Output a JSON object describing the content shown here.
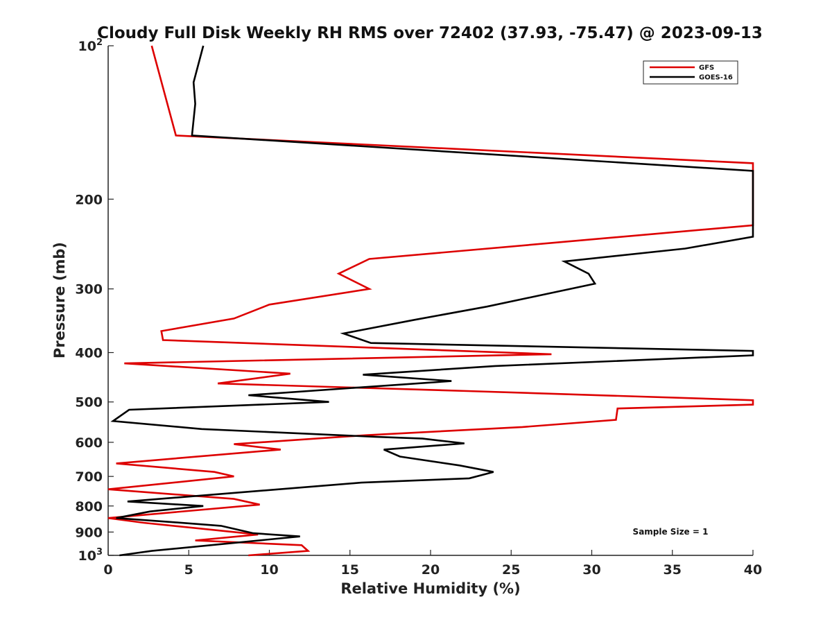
{
  "chart_data": {
    "type": "line",
    "title": "Cloudy Full Disk Weekly RH RMS over 72402 (37.93, -75.47) @ 2023-09-13",
    "xlabel": "Relative Humidity (%)",
    "ylabel": "Pressure (mb)",
    "xlim": [
      0,
      40
    ],
    "ylim": [
      100,
      1000
    ],
    "yscale": "log",
    "y_reversed": true,
    "grid": false,
    "legend_position": "top-right",
    "x_ticks": [
      "0",
      "5",
      "10",
      "15",
      "20",
      "25",
      "30",
      "35",
      "40"
    ],
    "y_ticks": [
      {
        "value": 100,
        "base": "10",
        "exp": "2"
      },
      {
        "value": 200,
        "label": "200"
      },
      {
        "value": 300,
        "label": "300"
      },
      {
        "value": 400,
        "label": "400"
      },
      {
        "value": 500,
        "label": "500"
      },
      {
        "value": 600,
        "label": "600"
      },
      {
        "value": 700,
        "label": "700"
      },
      {
        "value": 800,
        "label": "800"
      },
      {
        "value": 900,
        "label": "900"
      },
      {
        "value": 1000,
        "base": "10",
        "exp": "3"
      }
    ],
    "series": [
      {
        "name": "GFS",
        "color": "#dd0000",
        "points": [
          [
            2.7,
            100
          ],
          [
            4.2,
            150
          ],
          [
            40,
            170
          ],
          [
            40,
            225
          ],
          [
            16.2,
            262
          ],
          [
            14.3,
            280
          ],
          [
            16.2,
            300
          ],
          [
            10,
            322
          ],
          [
            7.8,
            343
          ],
          [
            3.3,
            363
          ],
          [
            3.4,
            378
          ],
          [
            27.5,
            403
          ],
          [
            1.0,
            420
          ],
          [
            11.3,
            440
          ],
          [
            6.8,
            460
          ],
          [
            22.3,
            476
          ],
          [
            40,
            496
          ],
          [
            40,
            506
          ],
          [
            31.6,
            515
          ],
          [
            31.5,
            542
          ],
          [
            25.7,
            560
          ],
          [
            16.0,
            581
          ],
          [
            7.8,
            605
          ],
          [
            10.7,
            620
          ],
          [
            0.5,
            660
          ],
          [
            6.6,
            686
          ],
          [
            7.8,
            700
          ],
          [
            0,
            742
          ],
          [
            7.8,
            775
          ],
          [
            9.4,
            795
          ],
          [
            0,
            845
          ],
          [
            2.2,
            863
          ],
          [
            9.3,
            910
          ],
          [
            5.4,
            935
          ],
          [
            12.0,
            955
          ],
          [
            12.4,
            980
          ],
          [
            8.7,
            1000
          ]
        ]
      },
      {
        "name": "GOES-16",
        "color": "#000000",
        "points": [
          [
            5.9,
            100
          ],
          [
            5.3,
            118
          ],
          [
            5.4,
            130
          ],
          [
            5.2,
            150
          ],
          [
            40,
            176
          ],
          [
            40,
            237
          ],
          [
            35.8,
            250
          ],
          [
            28.3,
            265
          ],
          [
            29.8,
            280
          ],
          [
            30.2,
            293
          ],
          [
            23.5,
            325
          ],
          [
            19.0,
            345
          ],
          [
            14.6,
            367
          ],
          [
            16.3,
            383
          ],
          [
            40,
            397
          ],
          [
            40,
            405
          ],
          [
            24.0,
            425
          ],
          [
            15.8,
            442
          ],
          [
            21.3,
            455
          ],
          [
            8.7,
            485
          ],
          [
            13.7,
            500
          ],
          [
            1.3,
            518
          ],
          [
            0.3,
            545
          ],
          [
            5.8,
            565
          ],
          [
            16.5,
            585
          ],
          [
            19.5,
            590
          ],
          [
            22.1,
            603
          ],
          [
            17.1,
            620
          ],
          [
            18.1,
            640
          ],
          [
            21.8,
            666
          ],
          [
            23.9,
            686
          ],
          [
            22.4,
            706
          ],
          [
            15.7,
            720
          ],
          [
            1.2,
            784
          ],
          [
            5.9,
            800
          ],
          [
            2.6,
            820
          ],
          [
            0.5,
            845
          ],
          [
            3.9,
            860
          ],
          [
            7.0,
            875
          ],
          [
            9.0,
            905
          ],
          [
            11.9,
            918
          ],
          [
            2.7,
            980
          ],
          [
            0.7,
            1000
          ]
        ]
      }
    ],
    "annotation": "Sample Size = 1"
  }
}
